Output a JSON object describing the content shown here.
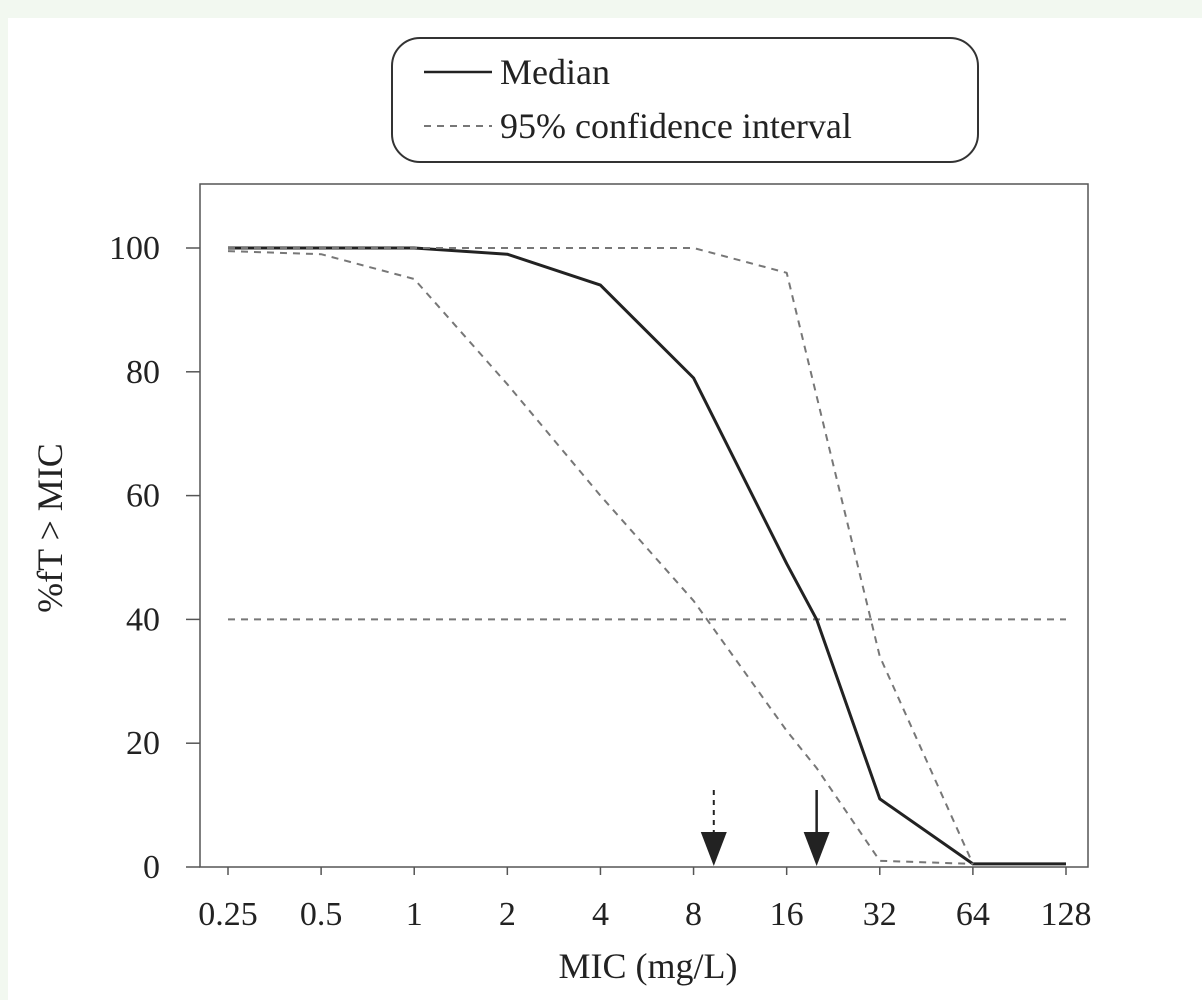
{
  "chart_data": {
    "type": "line",
    "x": [
      0.25,
      0.5,
      1,
      2,
      4,
      8,
      16,
      32,
      64,
      128
    ],
    "x_tick_labels": [
      "0.25",
      "0.5",
      "1",
      "2",
      "4",
      "8",
      "16",
      "32",
      "64",
      "128"
    ],
    "x_scale": "log2",
    "xlim": [
      0.25,
      128
    ],
    "ylim": [
      0,
      100
    ],
    "y_ticks": [
      0,
      20,
      40,
      60,
      80,
      100
    ],
    "xlabel": "MIC (mg/L)",
    "ylabel": "%fT > MIC",
    "grid": false,
    "legend": {
      "position": "top-center"
    },
    "series": [
      {
        "name": "Median",
        "style": "solid",
        "color": "#222222",
        "points": [
          [
            0.25,
            100
          ],
          [
            0.5,
            100
          ],
          [
            1,
            100
          ],
          [
            2,
            99
          ],
          [
            4,
            94
          ],
          [
            8,
            79
          ],
          [
            16,
            49
          ],
          [
            20,
            40
          ],
          [
            32,
            11
          ],
          [
            64,
            0.5
          ],
          [
            128,
            0.5
          ]
        ]
      },
      {
        "name": "95% confidence interval",
        "style": "dashed",
        "color": "#777777",
        "points": [
          [
            0.25,
            99.5
          ],
          [
            0.5,
            99
          ],
          [
            1,
            95
          ],
          [
            2,
            78
          ],
          [
            4,
            60
          ],
          [
            8,
            43
          ],
          [
            16,
            22
          ],
          [
            20,
            16
          ],
          [
            32,
            1
          ],
          [
            64,
            0.5
          ]
        ]
      },
      {
        "name": "95% confidence interval",
        "style": "dashed",
        "color": "#777777",
        "points": [
          [
            0.25,
            100
          ],
          [
            0.5,
            100
          ],
          [
            1,
            100
          ],
          [
            2,
            100
          ],
          [
            4,
            100
          ],
          [
            8,
            100
          ],
          [
            16,
            96
          ],
          [
            32,
            34
          ],
          [
            64,
            0.5
          ]
        ]
      }
    ],
    "reference_line": {
      "y": 40,
      "style": "dashed",
      "color": "#777777"
    },
    "arrows": [
      {
        "x": 9.3,
        "style": "dashed"
      },
      {
        "x": 20,
        "style": "solid"
      }
    ]
  }
}
